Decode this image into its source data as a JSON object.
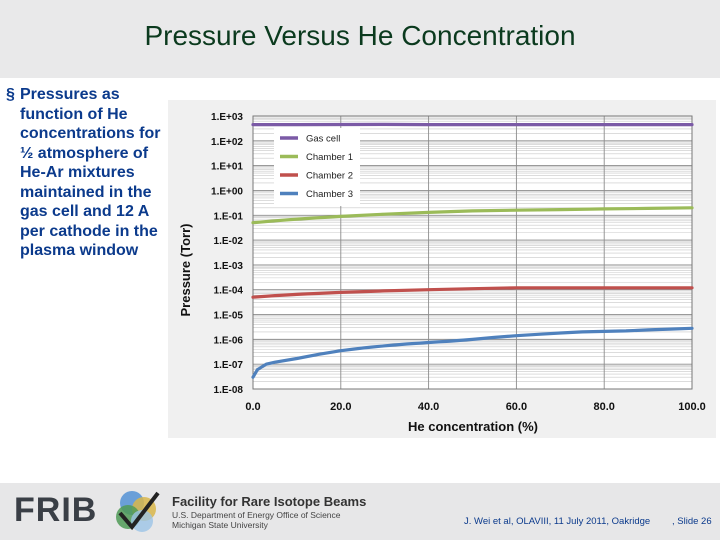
{
  "header": {
    "title": "Pressure Versus He Concentration"
  },
  "bullet": {
    "mark": "§",
    "text": "Pressures as function of He concentrations for ½ atmosphere of He-Ar mixtures maintained in the gas cell and 12 A per cathode in the plasma window"
  },
  "footer": {
    "frib": "FRIB",
    "facility": "Facility for Rare Isotope Beams",
    "doe": "U.S. Department of Energy Office of Science",
    "msu": "Michigan State University",
    "citation": "J. Wei et al, OLAVIII, 11 July 2011, Oakridge",
    "slide": ", Slide 26"
  },
  "chart_data": {
    "type": "line",
    "xlabel": "He concentration (%)",
    "ylabel": "Pressure (Torr)",
    "xlim": [
      0,
      100
    ],
    "ylim_log10": [
      -8,
      3
    ],
    "y_scale": "log",
    "x_tick_labels": [
      "0.0",
      "20.0",
      "40.0",
      "60.0",
      "80.0",
      "100.0"
    ],
    "x_ticks": [
      0,
      20,
      40,
      60,
      80,
      100
    ],
    "y_tick_labels": [
      "1.E+03",
      "1.E+02",
      "1.E+01",
      "1.E+00",
      "1.E-01",
      "1.E-02",
      "1.E-03",
      "1.E-04",
      "1.E-05",
      "1.E-06",
      "1.E-07",
      "1.E-08"
    ],
    "y_ticks_log10": [
      3,
      2,
      1,
      0,
      -1,
      -2,
      -3,
      -4,
      -5,
      -6,
      -7,
      -8
    ],
    "grid": true,
    "legend_position": "top-left",
    "series": [
      {
        "name": "Gas cell",
        "color": "#7b5aa6",
        "x": [
          0,
          10,
          20,
          30,
          40,
          50,
          60,
          70,
          80,
          90,
          100
        ],
        "y": [
          450,
          450,
          455,
          460,
          450,
          450,
          450,
          450,
          450,
          450,
          450
        ]
      },
      {
        "name": "Chamber 1",
        "color": "#9bbb59",
        "x": [
          0,
          5,
          10,
          20,
          30,
          40,
          50,
          60,
          70,
          80,
          90,
          100
        ],
        "y": [
          0.05,
          0.06,
          0.07,
          0.09,
          0.11,
          0.13,
          0.15,
          0.16,
          0.17,
          0.18,
          0.19,
          0.2
        ]
      },
      {
        "name": "Chamber 2",
        "color": "#c0504d",
        "x": [
          0,
          5,
          10,
          20,
          30,
          40,
          50,
          60,
          70,
          80,
          90,
          100
        ],
        "y": [
          5e-05,
          5.8e-05,
          6.5e-05,
          7.8e-05,
          9e-05,
          0.0001,
          0.00011,
          0.00012,
          0.00012,
          0.00012,
          0.00012,
          0.00012
        ]
      },
      {
        "name": "Chamber 3",
        "color": "#4f81bd",
        "x": [
          0,
          1,
          3,
          5,
          10,
          15,
          20,
          25,
          30,
          35,
          40,
          45,
          50,
          55,
          60,
          65,
          70,
          75,
          80,
          85,
          90,
          95,
          100
        ],
        "y": [
          3e-08,
          6e-08,
          1e-07,
          1.2e-07,
          1.7e-07,
          2.5e-07,
          3.5e-07,
          4.5e-07,
          5.5e-07,
          6.5e-07,
          7.5e-07,
          8.5e-07,
          1e-06,
          1.2e-06,
          1.4e-06,
          1.6e-06,
          1.8e-06,
          2e-06,
          2.1e-06,
          2.2e-06,
          2.4e-06,
          2.6e-06,
          2.8e-06
        ]
      }
    ]
  }
}
